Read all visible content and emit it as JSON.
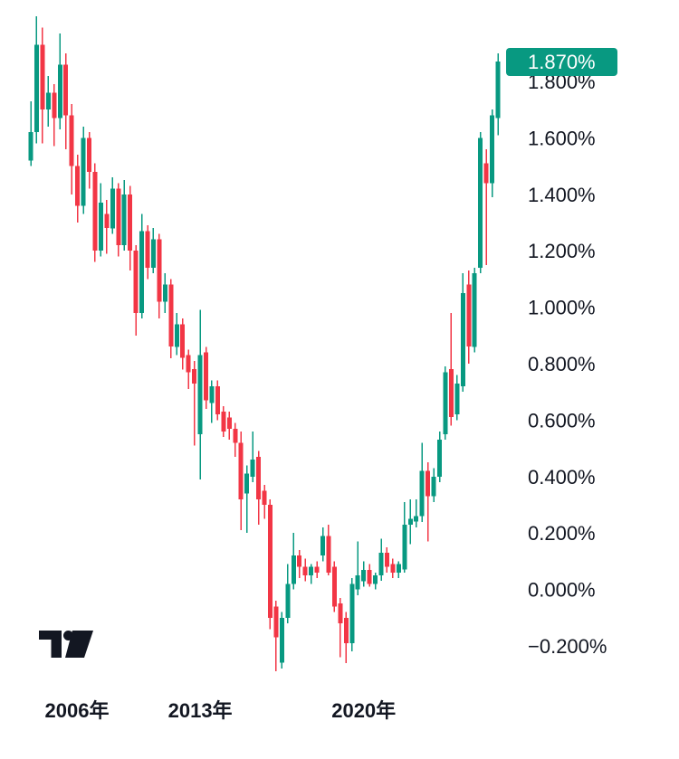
{
  "widget": {
    "vendor_logo_icon": "tradingview-logo",
    "background": "#FFFFFF"
  },
  "badge": {
    "label": "1.870%"
  },
  "chart_data": {
    "type": "candlestick",
    "bar_interval": "quarterly",
    "ohlc_order": [
      "open",
      "high",
      "low",
      "close"
    ],
    "unit": "percent",
    "title": "",
    "xlabel": "",
    "ylabel": "",
    "grid": false,
    "legend": null,
    "ylim": [
      -0.3,
      2.05
    ],
    "current_value_label": "1.870%",
    "last_close": 1.87,
    "colors": {
      "up": "#089981",
      "down": "#F23645",
      "badge_bg": "#089981",
      "badge_text": "#FFFFFF",
      "text": "#131722",
      "logo": "#131722",
      "background": "#FFFFFF"
    },
    "y_axis": {
      "side": "right",
      "labels": [
        "1.800%",
        "1.600%",
        "1.400%",
        "1.200%",
        "1.000%",
        "0.800%",
        "0.600%",
        "0.400%",
        "0.200%",
        "0.000%",
        "−0.200%"
      ],
      "values": [
        1.8,
        1.6,
        1.4,
        1.2,
        1.0,
        0.8,
        0.6,
        0.4,
        0.2,
        0.0,
        -0.2
      ]
    },
    "x_axis": {
      "ticks": [
        {
          "label": "2006年",
          "bar_index": 1
        },
        {
          "label": "2013年",
          "bar_index": 29
        },
        {
          "label": "2020年",
          "bar_index": 57
        }
      ]
    },
    "candles": [
      [
        1.52,
        1.73,
        1.5,
        1.62
      ],
      [
        1.62,
        2.03,
        1.58,
        1.93
      ],
      [
        1.93,
        1.99,
        1.58,
        1.7
      ],
      [
        1.7,
        1.82,
        1.64,
        1.76
      ],
      [
        1.76,
        1.79,
        1.57,
        1.67
      ],
      [
        1.67,
        1.97,
        1.63,
        1.86
      ],
      [
        1.86,
        1.9,
        1.56,
        1.68
      ],
      [
        1.68,
        1.72,
        1.4,
        1.5
      ],
      [
        1.5,
        1.54,
        1.3,
        1.36
      ],
      [
        1.36,
        1.64,
        1.33,
        1.6
      ],
      [
        1.6,
        1.62,
        1.42,
        1.48
      ],
      [
        1.48,
        1.51,
        1.16,
        1.2
      ],
      [
        1.2,
        1.44,
        1.18,
        1.37
      ],
      [
        1.33,
        1.38,
        1.19,
        1.28
      ],
      [
        1.28,
        1.46,
        1.26,
        1.42
      ],
      [
        1.42,
        1.44,
        1.18,
        1.22
      ],
      [
        1.22,
        1.45,
        1.2,
        1.4
      ],
      [
        1.4,
        1.43,
        1.13,
        1.2
      ],
      [
        1.2,
        1.22,
        0.9,
        0.98
      ],
      [
        0.98,
        1.33,
        0.96,
        1.27
      ],
      [
        1.27,
        1.29,
        1.1,
        1.14
      ],
      [
        1.14,
        1.28,
        1.12,
        1.24
      ],
      [
        1.24,
        1.26,
        0.96,
        1.02
      ],
      [
        1.02,
        1.12,
        0.98,
        1.08
      ],
      [
        1.08,
        1.1,
        0.82,
        0.86
      ],
      [
        0.86,
        0.98,
        0.83,
        0.94
      ],
      [
        0.94,
        0.96,
        0.78,
        0.82
      ],
      [
        0.83,
        0.85,
        0.71,
        0.77
      ],
      [
        0.78,
        0.81,
        0.51,
        0.73
      ],
      [
        0.55,
        0.99,
        0.39,
        0.83
      ],
      [
        0.84,
        0.86,
        0.64,
        0.67
      ],
      [
        0.66,
        0.74,
        0.59,
        0.72
      ],
      [
        0.72,
        0.74,
        0.6,
        0.62
      ],
      [
        0.63,
        0.65,
        0.54,
        0.56
      ],
      [
        0.61,
        0.63,
        0.53,
        0.57
      ],
      [
        0.57,
        0.59,
        0.47,
        0.52
      ],
      [
        0.52,
        0.56,
        0.21,
        0.32
      ],
      [
        0.34,
        0.44,
        0.2,
        0.41
      ],
      [
        0.4,
        0.56,
        0.38,
        0.46
      ],
      [
        0.47,
        0.49,
        0.23,
        0.32
      ],
      [
        0.35,
        0.37,
        0.25,
        0.3
      ],
      [
        0.3,
        0.32,
        -0.14,
        -0.1
      ],
      [
        -0.06,
        -0.04,
        -0.29,
        -0.17
      ],
      [
        -0.26,
        -0.08,
        -0.28,
        -0.1
      ],
      [
        -0.1,
        0.09,
        -0.12,
        0.02
      ],
      [
        0.02,
        0.2,
        0.0,
        0.12
      ],
      [
        0.12,
        0.14,
        0.04,
        0.08
      ],
      [
        0.08,
        0.11,
        0.03,
        0.05
      ],
      [
        0.05,
        0.09,
        0.02,
        0.08
      ],
      [
        0.08,
        0.1,
        0.04,
        0.06
      ],
      [
        0.12,
        0.22,
        0.1,
        0.19
      ],
      [
        0.19,
        0.23,
        0.05,
        0.06
      ],
      [
        0.08,
        0.1,
        -0.08,
        -0.06
      ],
      [
        -0.05,
        -0.03,
        -0.24,
        -0.12
      ],
      [
        -0.1,
        -0.08,
        -0.26,
        -0.19
      ],
      [
        -0.19,
        0.04,
        -0.22,
        0.02
      ],
      [
        0.0,
        0.17,
        -0.02,
        0.05
      ],
      [
        0.03,
        0.1,
        0.01,
        0.07
      ],
      [
        0.07,
        0.09,
        0.01,
        0.02
      ],
      [
        0.02,
        0.06,
        0.0,
        0.05
      ],
      [
        0.05,
        0.18,
        0.03,
        0.13
      ],
      [
        0.13,
        0.15,
        0.06,
        0.08
      ],
      [
        0.09,
        0.11,
        0.04,
        0.06
      ],
      [
        0.06,
        0.1,
        0.04,
        0.09
      ],
      [
        0.07,
        0.31,
        0.06,
        0.23
      ],
      [
        0.23,
        0.32,
        0.16,
        0.25
      ],
      [
        0.24,
        0.32,
        0.22,
        0.26
      ],
      [
        0.26,
        0.52,
        0.24,
        0.42
      ],
      [
        0.42,
        0.45,
        0.17,
        0.33
      ],
      [
        0.33,
        0.43,
        0.31,
        0.4
      ],
      [
        0.4,
        0.56,
        0.38,
        0.53
      ],
      [
        0.55,
        0.79,
        0.53,
        0.77
      ],
      [
        0.78,
        0.98,
        0.58,
        0.61
      ],
      [
        0.62,
        0.76,
        0.6,
        0.73
      ],
      [
        0.72,
        1.12,
        0.7,
        1.05
      ],
      [
        1.08,
        1.13,
        0.8,
        0.86
      ],
      [
        0.86,
        1.14,
        0.84,
        1.12
      ],
      [
        1.14,
        1.62,
        1.12,
        1.6
      ],
      [
        1.51,
        1.56,
        1.15,
        1.44
      ],
      [
        1.44,
        1.7,
        1.39,
        1.68
      ],
      [
        1.67,
        1.9,
        1.61,
        1.87
      ]
    ]
  }
}
